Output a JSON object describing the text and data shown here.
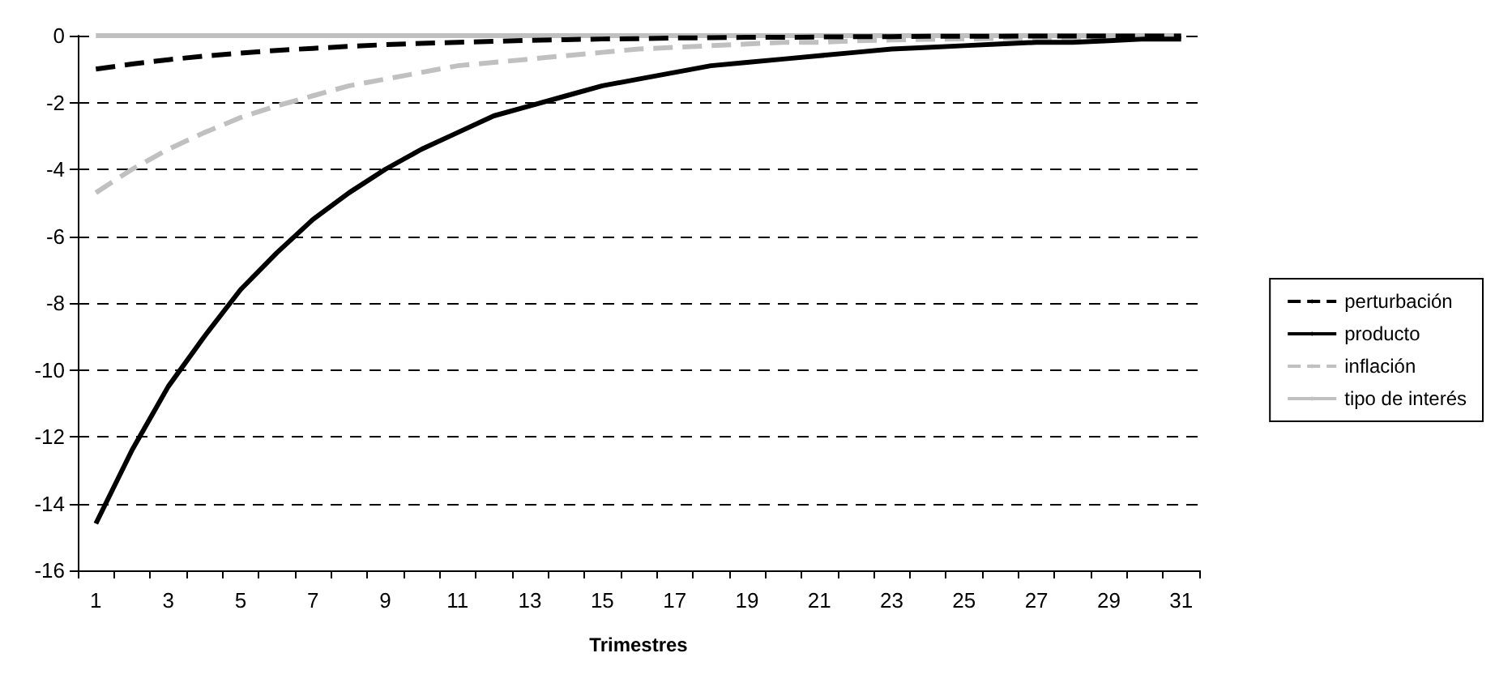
{
  "chart_data": {
    "type": "line",
    "xlabel": "Trimestres",
    "x": [
      1,
      2,
      3,
      4,
      5,
      6,
      7,
      8,
      9,
      10,
      11,
      12,
      13,
      14,
      15,
      16,
      17,
      18,
      19,
      20,
      21,
      22,
      23,
      24,
      25,
      26,
      27,
      28,
      29,
      30,
      31
    ],
    "series": [
      {
        "name": "perturbación",
        "color": "#000000",
        "line_style": "dashed",
        "values": [
          -1.0,
          -0.85,
          -0.72,
          -0.61,
          -0.52,
          -0.44,
          -0.38,
          -0.32,
          -0.27,
          -0.23,
          -0.2,
          -0.17,
          -0.14,
          -0.12,
          -0.1,
          -0.09,
          -0.07,
          -0.06,
          -0.05,
          -0.05,
          -0.04,
          -0.03,
          -0.03,
          -0.02,
          -0.02,
          -0.02,
          -0.01,
          -0.01,
          -0.01,
          -0.01,
          -0.01
        ]
      },
      {
        "name": "producto",
        "color": "#000000",
        "line_style": "solid",
        "values": [
          -14.6,
          -12.4,
          -10.5,
          -9.0,
          -7.6,
          -6.5,
          -5.5,
          -4.7,
          -4.0,
          -3.4,
          -2.9,
          -2.4,
          -2.1,
          -1.8,
          -1.5,
          -1.3,
          -1.1,
          -0.9,
          -0.8,
          -0.7,
          -0.6,
          -0.5,
          -0.4,
          -0.35,
          -0.3,
          -0.25,
          -0.2,
          -0.2,
          -0.15,
          -0.1,
          -0.1
        ]
      },
      {
        "name": "inflación",
        "color": "#c0c0c0",
        "line_style": "dashed",
        "values": [
          -4.7,
          -4.0,
          -3.4,
          -2.9,
          -2.45,
          -2.1,
          -1.8,
          -1.5,
          -1.3,
          -1.1,
          -0.9,
          -0.8,
          -0.7,
          -0.6,
          -0.5,
          -0.4,
          -0.35,
          -0.3,
          -0.25,
          -0.2,
          -0.2,
          -0.15,
          -0.13,
          -0.11,
          -0.1,
          -0.08,
          -0.07,
          -0.06,
          -0.05,
          -0.04,
          -0.04
        ]
      },
      {
        "name": "tipo de interés",
        "color": "#c0c0c0",
        "line_style": "solid",
        "values": [
          0,
          0,
          0,
          0,
          0,
          0,
          0,
          0,
          0,
          0,
          0,
          0,
          0,
          0,
          0,
          0,
          0,
          0,
          0,
          0,
          0,
          0,
          0,
          0,
          0,
          0,
          0,
          0,
          0,
          0,
          0
        ]
      }
    ],
    "xlim": [
      0.5,
      31.5
    ],
    "xticks": [
      {
        "value": 0.5,
        "label": null
      },
      1,
      {
        "value": 1.5,
        "label": null
      },
      {
        "value": 2.5,
        "label": null
      },
      3,
      {
        "value": 3.5,
        "label": null
      },
      {
        "value": 4.5,
        "label": null
      },
      5,
      {
        "value": 5.5,
        "label": null
      },
      {
        "value": 6.5,
        "label": null
      },
      7,
      {
        "value": 7.5,
        "label": null
      },
      {
        "value": 8.5,
        "label": null
      },
      9,
      {
        "value": 9.5,
        "label": null
      },
      {
        "value": 10.5,
        "label": null
      },
      11,
      {
        "value": 11.5,
        "label": null
      },
      {
        "value": 12.5,
        "label": null
      },
      13,
      {
        "value": 13.5,
        "label": null
      },
      {
        "value": 14.5,
        "label": null
      },
      15,
      {
        "value": 15.5,
        "label": null
      },
      {
        "value": 16.5,
        "label": null
      },
      17,
      {
        "value": 17.5,
        "label": null
      },
      {
        "value": 18.5,
        "label": null
      },
      19,
      {
        "value": 19.5,
        "label": null
      },
      {
        "value": 20.5,
        "label": null
      },
      21,
      {
        "value": 21.5,
        "label": null
      },
      {
        "value": 22.5,
        "label": null
      },
      23,
      {
        "value": 23.5,
        "label": null
      },
      {
        "value": 24.5,
        "label": null
      },
      25,
      {
        "value": 25.5,
        "label": null
      },
      {
        "value": 26.5,
        "label": null
      },
      27,
      {
        "value": 27.5,
        "label": null
      },
      {
        "value": 28.5,
        "label": null
      },
      29,
      {
        "value": 29.5,
        "label": null
      },
      {
        "value": 30.5,
        "label": null
      },
      31,
      {
        "value": 31.5,
        "label": null
      }
    ],
    "ylim": [
      -16,
      0
    ],
    "yticks": [
      -16,
      -14,
      -12,
      -10,
      -8,
      -6,
      -4,
      -2,
      0
    ],
    "grid": "y",
    "legend": "right",
    "marker": "none"
  }
}
